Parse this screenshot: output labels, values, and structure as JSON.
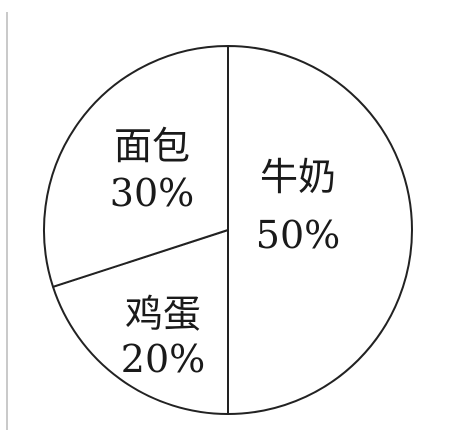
{
  "chart_data": {
    "type": "pie",
    "slices": [
      {
        "name": "牛奶",
        "value": 50,
        "value_label": "50%"
      },
      {
        "name": "鸡蛋",
        "value": 20,
        "value_label": "20%"
      },
      {
        "name": "面包",
        "value": 30,
        "value_label": "30%"
      }
    ],
    "title": "",
    "colors": {
      "fill": "#ffffff",
      "stroke": "#222222"
    }
  }
}
